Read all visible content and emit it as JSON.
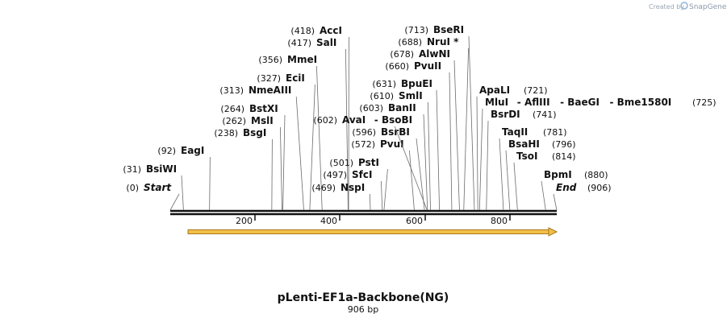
{
  "credit": {
    "prefix": "Created by",
    "brand": "SnapGene"
  },
  "map": {
    "title": "pLenti-EF1a-Backbone(NG)",
    "length_label": "906 bp",
    "length": 906,
    "ticks": [
      "200",
      "400",
      "600",
      "800"
    ],
    "feature_color": "#f2c04a",
    "sites": [
      {
        "name": "Start",
        "pos": 0,
        "pos_label": "(0)",
        "terminal": true
      },
      {
        "name": "BsiWI",
        "pos": 31,
        "pos_label": "(31)"
      },
      {
        "name": "EagI",
        "pos": 92,
        "pos_label": "(92)"
      },
      {
        "name": "BsgI",
        "pos": 238,
        "pos_label": "(238)"
      },
      {
        "name": "MslI",
        "pos": 262,
        "pos_label": "(262)"
      },
      {
        "name": "BstXI",
        "pos": 264,
        "pos_label": "(264)"
      },
      {
        "name": "NmeAIII",
        "pos": 313,
        "pos_label": "(313)"
      },
      {
        "name": "EciI",
        "pos": 327,
        "pos_label": "(327)"
      },
      {
        "name": "MmeI",
        "pos": 356,
        "pos_label": "(356)"
      },
      {
        "name": "SalI",
        "pos": 417,
        "pos_label": "(417)"
      },
      {
        "name": "AccI",
        "pos": 418,
        "pos_label": "(418)"
      },
      {
        "name": "NspI",
        "pos": 469,
        "pos_label": "(469)"
      },
      {
        "name": "SfcI",
        "pos": 497,
        "pos_label": "(497)"
      },
      {
        "name": "PstI",
        "pos": 501,
        "pos_label": "(501)"
      },
      {
        "name": "PvuI",
        "pos": 572,
        "pos_label": "(572)"
      },
      {
        "name": "BsrBI",
        "pos": 596,
        "pos_label": "(596)"
      },
      {
        "name": "AvaI",
        "pos": 602,
        "pos_label": "(602)",
        "extra": "- BsoBI"
      },
      {
        "name": "BanII",
        "pos": 603,
        "pos_label": "(603)"
      },
      {
        "name": "SmlI",
        "pos": 610,
        "pos_label": "(610)"
      },
      {
        "name": "BpuEI",
        "pos": 631,
        "pos_label": "(631)"
      },
      {
        "name": "PvuII",
        "pos": 660,
        "pos_label": "(660)"
      },
      {
        "name": "AlwNI",
        "pos": 678,
        "pos_label": "(678)"
      },
      {
        "name": "NruI *",
        "pos": 688,
        "pos_label": "(688)"
      },
      {
        "name": "BseRI",
        "pos": 713,
        "pos_label": "(713)"
      },
      {
        "name": "ApaLI",
        "pos": 721,
        "pos_label": "(721)"
      },
      {
        "name": "MluI",
        "pos": 725,
        "pos_label": "(725)",
        "extra": "- AflIII   - BaeGI   - Bme1580I"
      },
      {
        "name": "BsrDI",
        "pos": 741,
        "pos_label": "(741)"
      },
      {
        "name": "TaqII",
        "pos": 781,
        "pos_label": "(781)"
      },
      {
        "name": "BsaHI",
        "pos": 796,
        "pos_label": "(796)"
      },
      {
        "name": "TsoI",
        "pos": 814,
        "pos_label": "(814)"
      },
      {
        "name": "BpmI",
        "pos": 880,
        "pos_label": "(880)"
      },
      {
        "name": "End",
        "pos": 906,
        "pos_label": "(906)",
        "terminal": true
      }
    ]
  }
}
